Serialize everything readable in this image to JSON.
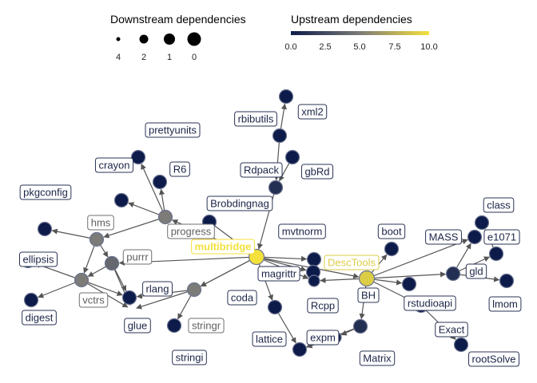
{
  "legend": {
    "downstream_title": "Downstream dependencies",
    "downstream_values": [
      "4",
      "2",
      "1",
      "0"
    ],
    "upstream_title": "Upstream dependencies",
    "upstream_ticks": [
      "0.0",
      "2.5",
      "5.0",
      "7.5",
      "10.0"
    ],
    "upstream_range": [
      0,
      10
    ],
    "colors": {
      "low": "#0d1b4a",
      "mid": "#7c7b78",
      "high": "#f4e13b"
    }
  },
  "nodes": [
    {
      "label": "xml2",
      "upstream": 0
    },
    {
      "label": "rbibutils",
      "upstream": 0
    },
    {
      "label": "gbRd",
      "upstream": 0
    },
    {
      "label": "Rdpack",
      "upstream": 1
    },
    {
      "label": "Brobdingnag",
      "upstream": 0
    },
    {
      "label": "multibridge",
      "upstream": 10
    },
    {
      "label": "mvtnorm",
      "upstream": 0
    },
    {
      "label": "magrittr",
      "upstream": 0
    },
    {
      "label": "Rcpp",
      "upstream": 0
    },
    {
      "label": "coda",
      "upstream": 0
    },
    {
      "label": "lattice",
      "upstream": 0
    },
    {
      "label": "expm",
      "upstream": 0
    },
    {
      "label": "Matrix",
      "upstream": 1
    },
    {
      "label": "DescTools",
      "upstream": 9
    },
    {
      "label": "BH",
      "upstream": 0
    },
    {
      "label": "boot",
      "upstream": 0
    },
    {
      "label": "MASS",
      "upstream": 0
    },
    {
      "label": "class",
      "upstream": 0
    },
    {
      "label": "e1071",
      "upstream": 0
    },
    {
      "label": "gld",
      "upstream": 1
    },
    {
      "label": "lmom",
      "upstream": 0
    },
    {
      "label": "rstudioapi",
      "upstream": 0
    },
    {
      "label": "Exact",
      "upstream": 0
    },
    {
      "label": "rootSolve",
      "upstream": 0
    },
    {
      "label": "prettyunits",
      "upstream": 0
    },
    {
      "label": "crayon",
      "upstream": 0
    },
    {
      "label": "R6",
      "upstream": 0
    },
    {
      "label": "progress",
      "upstream": 5
    },
    {
      "label": "pkgconfig",
      "upstream": 0
    },
    {
      "label": "hms",
      "upstream": 5
    },
    {
      "label": "purrr",
      "upstream": 4
    },
    {
      "label": "ellipsis",
      "upstream": 0
    },
    {
      "label": "vctrs",
      "upstream": 5
    },
    {
      "label": "rlang",
      "upstream": 0
    },
    {
      "label": "glue",
      "upstream": 0
    },
    {
      "label": "digest",
      "upstream": 0
    },
    {
      "label": "stringr",
      "upstream": 5
    },
    {
      "label": "stringi",
      "upstream": 0
    }
  ]
}
